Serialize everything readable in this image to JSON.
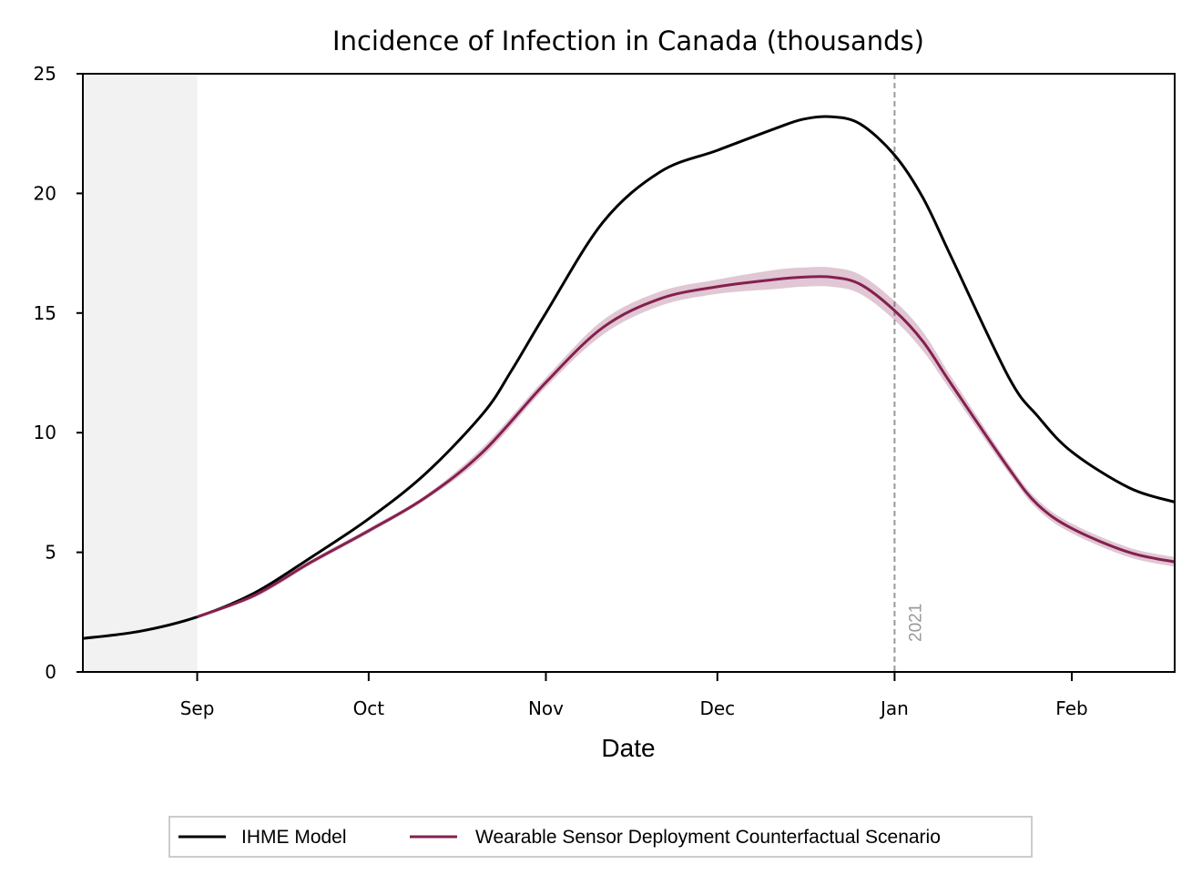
{
  "chart_data": {
    "type": "line",
    "title": "Incidence of Infection in Canada (thousands)",
    "xlabel": "Date",
    "ylabel": "",
    "x_axis": {
      "type": "date",
      "range": [
        "2020-08-12",
        "2021-02-19"
      ],
      "ticks": [
        {
          "date": "2020-09-01",
          "label": "Sep"
        },
        {
          "date": "2020-10-01",
          "label": "Oct"
        },
        {
          "date": "2020-11-01",
          "label": "Nov"
        },
        {
          "date": "2020-12-01",
          "label": "Dec"
        },
        {
          "date": "2021-01-01",
          "label": "Jan"
        },
        {
          "date": "2021-02-01",
          "label": "Feb"
        }
      ]
    },
    "ylim": [
      0,
      25
    ],
    "yticks": [
      0,
      5,
      10,
      15,
      20,
      25
    ],
    "grid": false,
    "legend_position": "bottom-center",
    "shaded_region": {
      "from": "2020-08-12",
      "to": "2020-09-01",
      "color": "#f2f2f2"
    },
    "reference_line": {
      "date": "2021-01-01",
      "label": "2021",
      "color": "#999999",
      "style": "dashed"
    },
    "series": [
      {
        "name": "IHME Model",
        "color": "#000000",
        "x": [
          "2020-08-12",
          "2020-08-22",
          "2020-09-01",
          "2020-09-11",
          "2020-09-21",
          "2020-10-01",
          "2020-10-11",
          "2020-10-21",
          "2020-10-26",
          "2020-11-01",
          "2020-11-11",
          "2020-11-21",
          "2020-12-01",
          "2020-12-11",
          "2020-12-16",
          "2020-12-21",
          "2020-12-26",
          "2021-01-01",
          "2021-01-06",
          "2021-01-11",
          "2021-01-21",
          "2021-01-26",
          "2021-02-01",
          "2021-02-11",
          "2021-02-19"
        ],
        "values": [
          1.4,
          1.7,
          2.3,
          3.3,
          4.8,
          6.4,
          8.3,
          10.8,
          12.6,
          15.0,
          18.8,
          20.9,
          21.8,
          22.7,
          23.1,
          23.2,
          22.9,
          21.6,
          19.8,
          17.3,
          12.3,
          10.7,
          9.2,
          7.7,
          7.1
        ]
      },
      {
        "name": "Wearable Sensor Deployment Counterfactual Scenario",
        "color": "#84204f",
        "band_color": "#84204f",
        "band_opacity": 0.25,
        "x": [
          "2020-09-01",
          "2020-09-11",
          "2020-09-21",
          "2020-10-01",
          "2020-10-11",
          "2020-10-21",
          "2020-11-01",
          "2020-11-11",
          "2020-11-21",
          "2020-12-01",
          "2020-12-11",
          "2020-12-16",
          "2020-12-21",
          "2020-12-26",
          "2021-01-01",
          "2021-01-06",
          "2021-01-11",
          "2021-01-21",
          "2021-01-26",
          "2021-02-01",
          "2021-02-11",
          "2021-02-19"
        ],
        "values": [
          2.3,
          3.2,
          4.6,
          5.9,
          7.3,
          9.2,
          12.1,
          14.4,
          15.6,
          16.1,
          16.4,
          16.5,
          16.5,
          16.2,
          15.1,
          13.8,
          12.0,
          8.5,
          7.0,
          6.0,
          5.0,
          4.6
        ],
        "lower": [
          2.3,
          3.1,
          4.5,
          5.8,
          7.2,
          9.0,
          11.9,
          14.1,
          15.3,
          15.8,
          16.0,
          16.1,
          16.1,
          15.8,
          14.7,
          13.4,
          11.7,
          8.3,
          6.8,
          5.8,
          4.8,
          4.4
        ],
        "upper": [
          2.3,
          3.3,
          4.7,
          6.0,
          7.4,
          9.4,
          12.3,
          14.7,
          15.9,
          16.4,
          16.8,
          16.9,
          16.9,
          16.6,
          15.5,
          14.2,
          12.3,
          8.7,
          7.2,
          6.2,
          5.2,
          4.8
        ]
      }
    ]
  }
}
